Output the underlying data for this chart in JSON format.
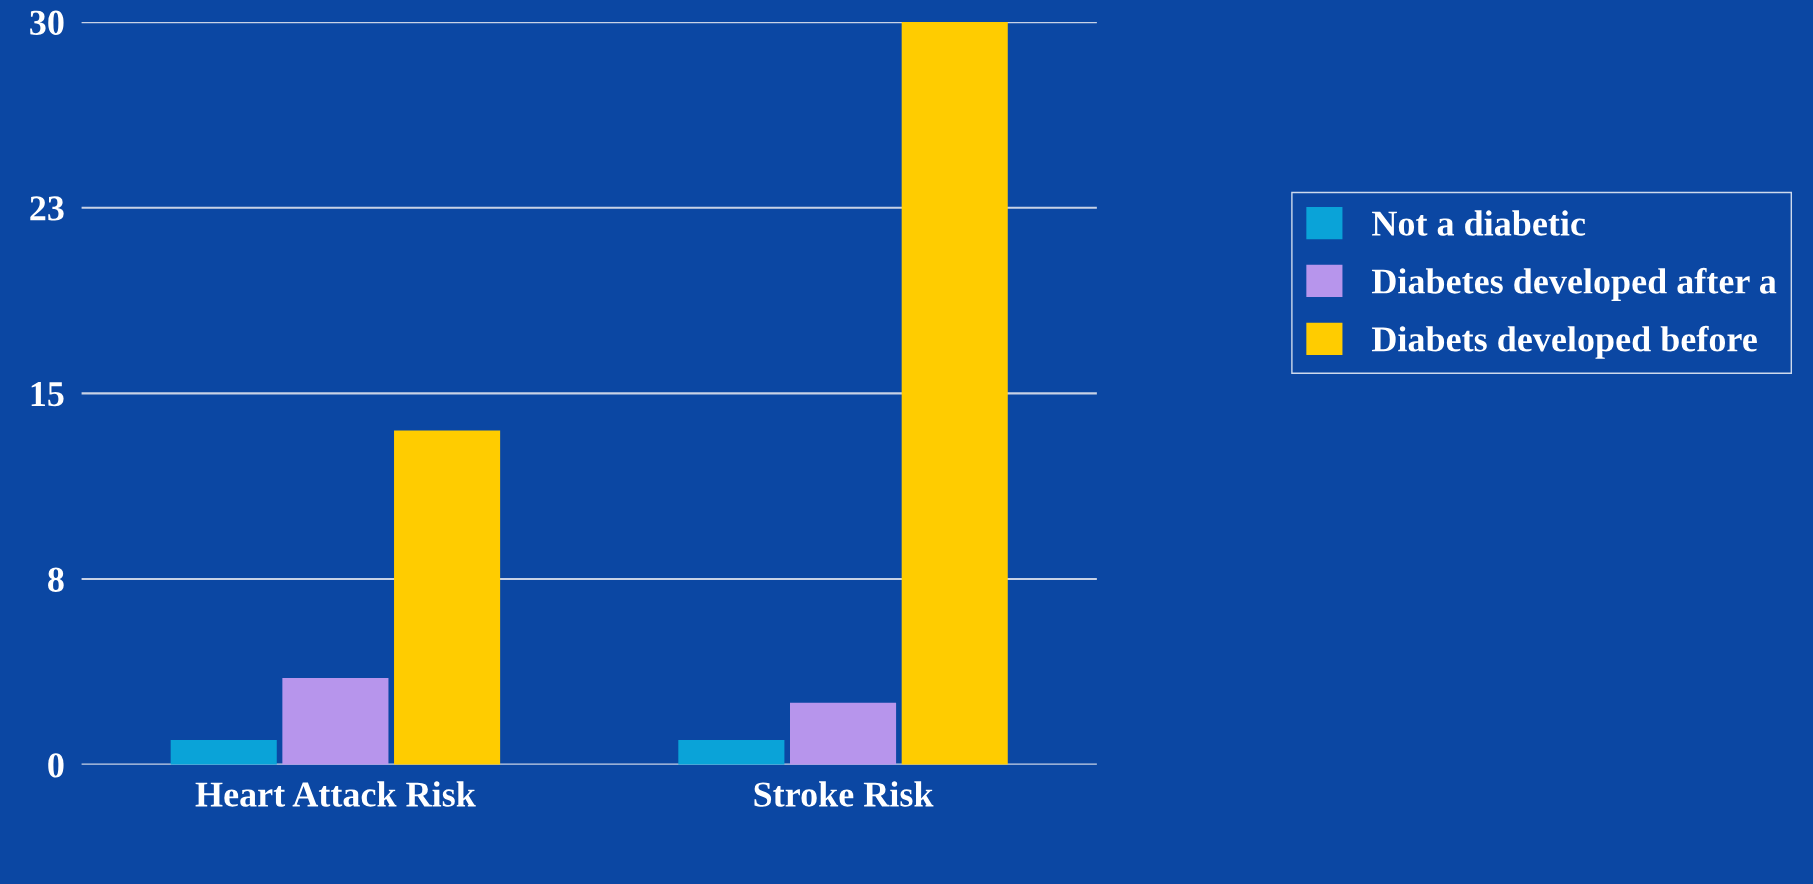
{
  "chart_data": {
    "type": "bar",
    "categories": [
      "Heart Attack Risk",
      "Stroke Risk"
    ],
    "series": [
      {
        "name": "Not a diabetic",
        "color": "#0aa3d8",
        "values": [
          1,
          1
        ]
      },
      {
        "name": "Diabetes developed after a",
        "color": "#b795ec",
        "values": [
          3.5,
          2.5
        ]
      },
      {
        "name": "Diabets developed before",
        "color": "#ffcc00",
        "values": [
          13.5,
          30
        ]
      }
    ],
    "ylim": [
      0,
      30
    ],
    "yticks": [
      0,
      {
        "value": 7.5,
        "label": "8"
      },
      15,
      {
        "value": 22.5,
        "label": "23"
      },
      30
    ],
    "grid": "y",
    "legend": "right"
  }
}
